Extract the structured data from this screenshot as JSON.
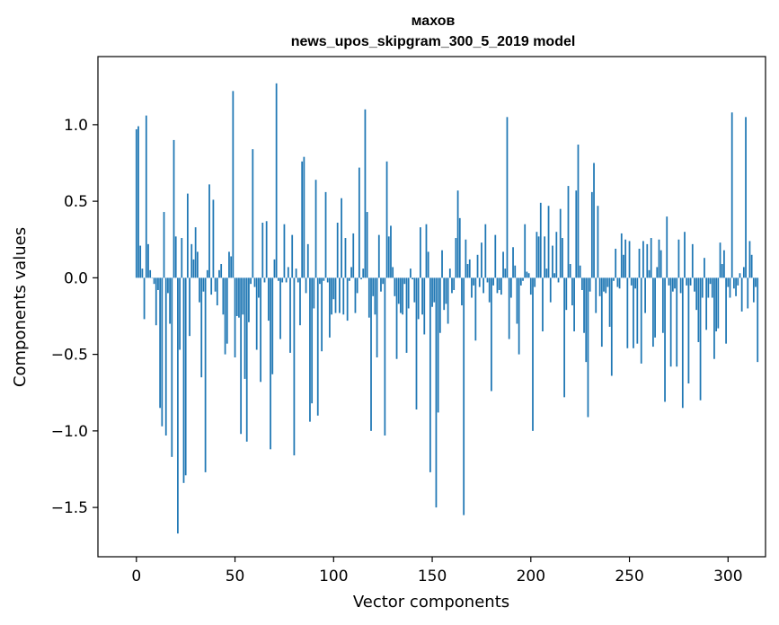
{
  "chart_data": {
    "type": "bar",
    "title": "махов",
    "subtitle": "news_upos_skipgram_300_5_2019 model",
    "xlabel": "Vector components",
    "ylabel": "Components values",
    "xlim": [
      -19.5,
      319
    ],
    "ylim": [
      -1.822,
      1.445
    ],
    "xticks": [
      0,
      50,
      100,
      150,
      200,
      250,
      300
    ],
    "xtick_labels": [
      "0",
      "50",
      "100",
      "150",
      "200",
      "250",
      "300"
    ],
    "yticks": [
      1.0,
      0.5,
      0.0,
      -0.5,
      -1.0,
      -1.5
    ],
    "ytick_labels": [
      "1.0",
      "0.5",
      "0.0",
      "−0.5",
      "−1.0",
      "−1.5"
    ],
    "grid": false,
    "bar_color": "#1f77b4",
    "values": [
      0.97,
      0.99,
      0.21,
      0.06,
      -0.27,
      1.06,
      0.22,
      0.05,
      0.0,
      -0.04,
      -0.31,
      -0.08,
      -0.85,
      -0.97,
      0.43,
      -1.03,
      -0.1,
      -0.3,
      -1.17,
      0.9,
      0.27,
      -1.67,
      -0.47,
      0.26,
      -1.34,
      -1.29,
      0.55,
      -0.38,
      0.22,
      0.12,
      0.33,
      0.17,
      -0.16,
      -0.65,
      -0.09,
      -1.27,
      0.05,
      0.61,
      -0.11,
      0.51,
      -0.09,
      -0.18,
      0.05,
      0.09,
      -0.24,
      -0.5,
      -0.43,
      0.17,
      0.14,
      1.22,
      -0.52,
      -0.25,
      -0.26,
      -1.02,
      -0.24,
      -0.66,
      -1.07,
      -0.29,
      -0.04,
      0.84,
      -0.06,
      -0.47,
      -0.13,
      -0.68,
      0.36,
      -0.03,
      0.37,
      -0.28,
      -1.12,
      -0.63,
      0.12,
      1.27,
      -0.02,
      -0.4,
      -0.03,
      0.35,
      -0.03,
      0.07,
      -0.49,
      0.28,
      -1.16,
      0.06,
      -0.03,
      -0.31,
      0.76,
      0.79,
      -0.1,
      0.22,
      -0.94,
      -0.82,
      -0.2,
      0.64,
      -0.9,
      -0.04,
      -0.48,
      -0.02,
      0.56,
      -0.03,
      -0.39,
      -0.24,
      -0.14,
      -0.23,
      0.36,
      -0.23,
      0.52,
      -0.24,
      0.26,
      -0.28,
      -0.02,
      0.07,
      0.29,
      -0.23,
      -0.1,
      0.72,
      -0.01,
      0.06,
      1.1,
      0.43,
      -0.26,
      -1.0,
      -0.12,
      -0.24,
      -0.52,
      0.28,
      -0.09,
      -0.04,
      -1.03,
      0.76,
      0.27,
      0.34,
      0.07,
      -0.12,
      -0.53,
      -0.17,
      -0.23,
      -0.24,
      -0.04,
      -0.49,
      -0.2,
      0.06,
      -0.01,
      -0.16,
      -0.86,
      -0.27,
      0.33,
      -0.24,
      -0.37,
      0.35,
      0.17,
      -1.27,
      -0.19,
      -0.16,
      -1.5,
      -0.88,
      -0.36,
      0.18,
      -0.21,
      -0.17,
      -0.3,
      0.06,
      -0.1,
      -0.08,
      0.26,
      0.57,
      0.39,
      -0.18,
      -1.55,
      0.25,
      0.09,
      0.12,
      -0.13,
      -0.05,
      -0.41,
      0.15,
      -0.06,
      0.23,
      -0.1,
      0.35,
      -0.03,
      -0.16,
      -0.74,
      -0.05,
      0.28,
      -0.1,
      -0.08,
      -0.11,
      0.17,
      0.06,
      1.05,
      -0.4,
      -0.13,
      0.2,
      0.08,
      -0.3,
      -0.5,
      -0.05,
      -0.02,
      0.35,
      0.04,
      0.03,
      -0.11,
      -1.0,
      -0.06,
      0.3,
      0.27,
      0.49,
      -0.35,
      0.27,
      0.06,
      0.47,
      -0.16,
      0.21,
      0.03,
      0.3,
      -0.03,
      0.45,
      0.26,
      -0.78,
      -0.21,
      0.6,
      0.09,
      -0.18,
      -0.35,
      0.57,
      0.87,
      0.08,
      -0.08,
      -0.36,
      -0.55,
      -0.91,
      -0.09,
      0.56,
      0.75,
      -0.23,
      0.47,
      -0.12,
      -0.45,
      -0.09,
      -0.1,
      -0.06,
      -0.32,
      -0.64,
      -0.02,
      0.19,
      -0.06,
      -0.07,
      0.29,
      0.15,
      0.25,
      -0.46,
      0.24,
      -0.05,
      -0.46,
      -0.07,
      -0.43,
      0.19,
      -0.56,
      0.24,
      -0.23,
      0.22,
      0.05,
      0.26,
      -0.45,
      -0.39,
      0.07,
      0.25,
      0.18,
      -0.36,
      -0.81,
      0.4,
      -0.05,
      -0.58,
      -0.09,
      -0.07,
      -0.58,
      0.25,
      -0.1,
      -0.85,
      0.3,
      -0.05,
      -0.69,
      -0.05,
      0.22,
      -0.09,
      -0.21,
      -0.42,
      -0.8,
      -0.13,
      0.13,
      -0.34,
      -0.13,
      -0.04,
      -0.13,
      -0.53,
      -0.35,
      -0.33,
      0.23,
      0.09,
      0.18,
      -0.43,
      -0.06,
      -0.13,
      1.08,
      -0.07,
      -0.12,
      -0.05,
      0.03,
      -0.22,
      0.07,
      1.05,
      -0.2,
      0.24,
      0.15,
      -0.16,
      -0.06,
      -0.55
    ]
  }
}
